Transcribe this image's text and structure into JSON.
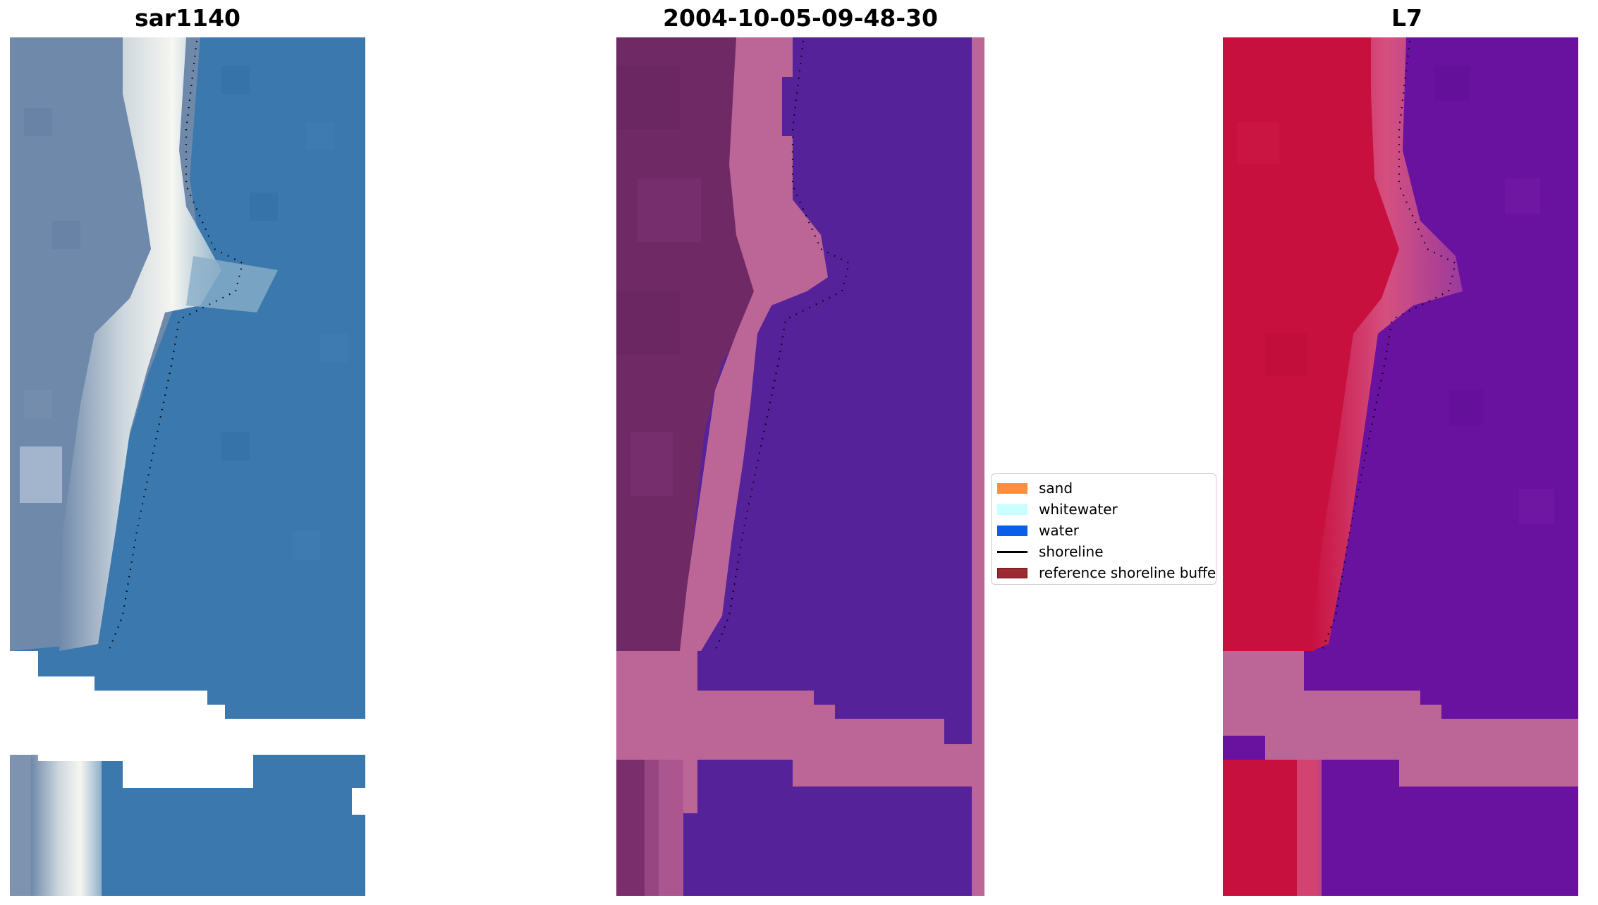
{
  "panels": [
    {
      "title": "sar1140"
    },
    {
      "title": "2004-10-05-09-48-30"
    },
    {
      "title": "L7"
    }
  ],
  "legend": {
    "items": [
      {
        "label": "sand",
        "color": "#ff8c3f",
        "kind": "patch"
      },
      {
        "label": "whitewater",
        "color": "#c8ffff",
        "kind": "patch"
      },
      {
        "label": "water",
        "color": "#0a5fe8",
        "kind": "patch"
      },
      {
        "label": "shoreline",
        "color": "#000000",
        "kind": "line"
      },
      {
        "label": "reference shoreline buffer",
        "color": "#9b2a33",
        "kind": "patch"
      }
    ]
  },
  "colors": {
    "rgb_water": "#3a78ad",
    "rgb_land": "#6f89aa",
    "rgb_beach": "#f2f2ee",
    "class_water": "#55229a",
    "class_land": "#6f2a66",
    "class_buffer": "#bb6697",
    "ndwi_land": "#c7103e",
    "ndwi_water": "#6a12a0",
    "nodata": "#ffffff",
    "shoreline_dots": "#000000"
  }
}
